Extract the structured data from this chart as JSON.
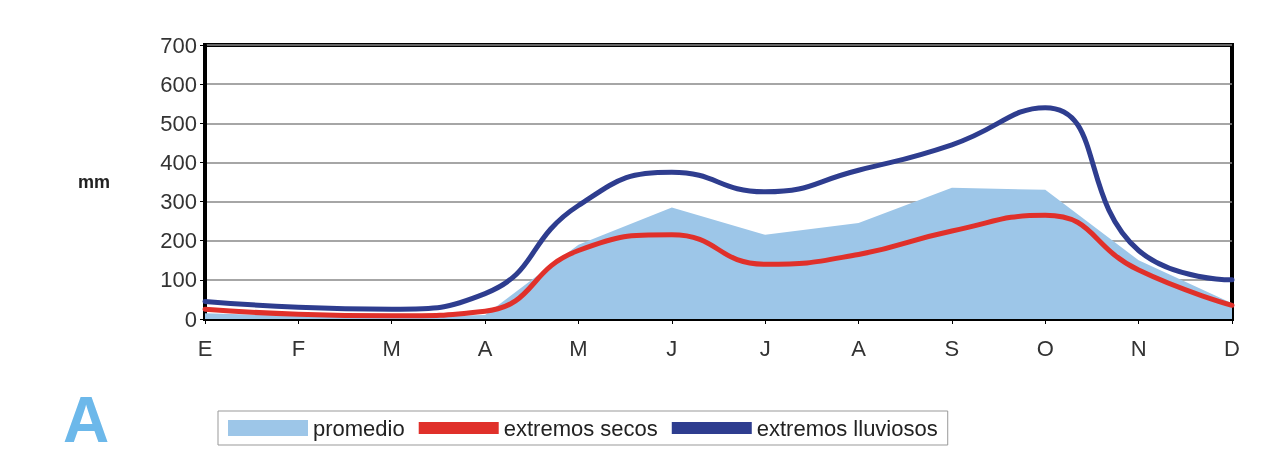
{
  "chart_data": {
    "type": "line",
    "ylabel": "mm",
    "annotations": [
      "A"
    ],
    "categories": [
      "E",
      "F",
      "M",
      "A",
      "M",
      "J",
      "J",
      "A",
      "S",
      "O",
      "N",
      "D"
    ],
    "series": [
      {
        "name": "promedio",
        "type": "area",
        "color": "#9dc6e8",
        "values": [
          15,
          8,
          5,
          10,
          190,
          285,
          215,
          245,
          335,
          330,
          150,
          40
        ]
      },
      {
        "name": "extremos secos",
        "type": "line",
        "color": "#e0302a",
        "values": [
          25,
          12,
          8,
          20,
          175,
          215,
          140,
          165,
          225,
          265,
          125,
          35
        ]
      },
      {
        "name": "extremos lluviosos",
        "type": "line",
        "color": "#2e3d8f",
        "values": [
          45,
          30,
          25,
          65,
          290,
          375,
          325,
          380,
          445,
          540,
          175,
          100
        ]
      }
    ],
    "ylim": [
      0,
      700
    ],
    "yticks": [
      0,
      100,
      200,
      300,
      400,
      500,
      600,
      700
    ],
    "grid": "y",
    "legend": "bottom",
    "marker": "none",
    "line_style": "solid"
  }
}
